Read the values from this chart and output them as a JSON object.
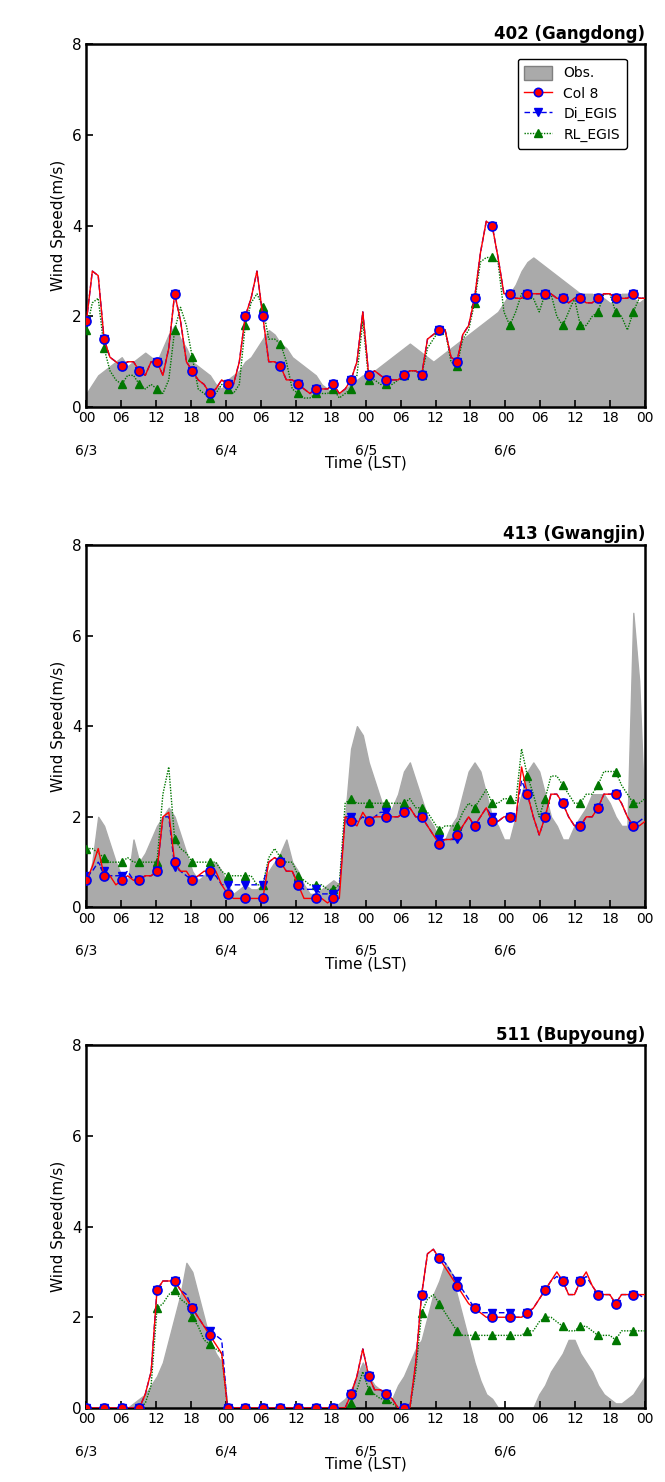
{
  "panels": [
    {
      "title": "402 (Gangdong)",
      "ylim": [
        0,
        8
      ],
      "yticks": [
        0,
        2,
        4,
        6,
        8
      ],
      "obs": [
        0.3,
        0.5,
        0.7,
        0.8,
        0.9,
        1.0,
        1.1,
        0.9,
        1.0,
        1.1,
        1.2,
        1.1,
        1.0,
        1.3,
        1.6,
        1.8,
        1.5,
        1.3,
        1.0,
        0.9,
        0.8,
        0.7,
        0.5,
        0.4,
        0.6,
        0.7,
        0.8,
        1.0,
        1.1,
        1.3,
        1.5,
        1.7,
        1.6,
        1.4,
        1.3,
        1.1,
        1.0,
        0.9,
        0.8,
        0.7,
        0.5,
        0.4,
        0.3,
        0.3,
        0.4,
        0.5,
        0.6,
        0.7,
        0.7,
        0.8,
        0.9,
        1.0,
        1.1,
        1.2,
        1.3,
        1.4,
        1.3,
        1.2,
        1.1,
        1.0,
        1.1,
        1.2,
        1.3,
        1.4,
        1.5,
        1.6,
        1.7,
        1.8,
        1.9,
        2.0,
        2.1,
        2.3,
        2.5,
        2.7,
        3.0,
        3.2,
        3.3,
        3.2,
        3.1,
        3.0,
        2.9,
        2.8,
        2.7,
        2.6,
        2.5,
        2.5,
        2.5,
        2.4,
        2.4,
        2.3,
        2.3,
        2.5,
        2.5,
        2.4,
        2.3,
        2.4
      ],
      "col8": [
        1.9,
        3.0,
        2.9,
        1.5,
        1.1,
        1.0,
        0.9,
        1.0,
        1.0,
        0.8,
        0.7,
        1.0,
        1.0,
        0.7,
        1.3,
        2.5,
        1.9,
        1.0,
        0.8,
        0.6,
        0.5,
        0.3,
        0.4,
        0.6,
        0.5,
        0.5,
        1.0,
        2.0,
        2.4,
        3.0,
        2.0,
        1.0,
        1.0,
        0.9,
        0.6,
        0.6,
        0.5,
        0.4,
        0.3,
        0.4,
        0.4,
        0.4,
        0.5,
        0.3,
        0.4,
        0.6,
        1.0,
        2.1,
        0.7,
        0.8,
        0.7,
        0.6,
        0.6,
        0.6,
        0.7,
        0.8,
        0.8,
        0.7,
        1.5,
        1.6,
        1.7,
        1.7,
        1.1,
        1.0,
        1.6,
        1.8,
        2.4,
        3.4,
        4.1,
        4.0,
        3.3,
        2.5,
        2.5,
        2.4,
        2.4,
        2.5,
        2.5,
        2.5,
        2.5,
        2.5,
        2.4,
        2.4,
        2.3,
        2.4,
        2.4,
        2.3,
        2.3,
        2.4,
        2.5,
        2.5,
        2.4,
        2.4,
        2.4,
        2.5,
        2.4,
        2.4
      ],
      "di_egis": [
        1.9,
        3.0,
        2.9,
        1.5,
        1.1,
        1.0,
        0.9,
        1.0,
        1.0,
        0.8,
        0.7,
        1.0,
        1.0,
        0.7,
        1.3,
        2.5,
        1.9,
        1.0,
        0.8,
        0.6,
        0.5,
        0.3,
        0.4,
        0.6,
        0.5,
        0.5,
        1.0,
        2.0,
        2.4,
        3.0,
        2.0,
        1.0,
        1.0,
        0.9,
        0.6,
        0.6,
        0.5,
        0.4,
        0.3,
        0.4,
        0.4,
        0.4,
        0.5,
        0.3,
        0.4,
        0.6,
        1.0,
        2.1,
        0.7,
        0.8,
        0.7,
        0.6,
        0.6,
        0.6,
        0.7,
        0.8,
        0.8,
        0.7,
        1.5,
        1.6,
        1.7,
        1.7,
        1.1,
        1.0,
        1.6,
        1.8,
        2.4,
        3.4,
        4.1,
        4.0,
        3.3,
        2.5,
        2.5,
        2.4,
        2.4,
        2.5,
        2.5,
        2.5,
        2.5,
        2.5,
        2.4,
        2.4,
        2.3,
        2.4,
        2.4,
        2.3,
        2.3,
        2.4,
        2.5,
        2.5,
        2.4,
        2.4,
        2.4,
        2.5,
        2.4,
        2.4
      ],
      "rl_egis": [
        1.7,
        2.3,
        2.4,
        1.3,
        0.8,
        0.6,
        0.5,
        0.7,
        0.7,
        0.5,
        0.4,
        0.5,
        0.4,
        0.3,
        0.6,
        1.7,
        2.2,
        1.8,
        1.1,
        0.4,
        0.3,
        0.2,
        0.3,
        0.5,
        0.4,
        0.3,
        0.5,
        1.8,
        2.3,
        2.5,
        2.2,
        1.5,
        1.5,
        1.4,
        1.0,
        0.4,
        0.3,
        0.2,
        0.2,
        0.3,
        0.3,
        0.3,
        0.4,
        0.2,
        0.3,
        0.4,
        0.7,
        1.9,
        0.6,
        0.6,
        0.5,
        0.5,
        0.5,
        0.6,
        0.7,
        0.8,
        0.8,
        0.7,
        1.3,
        1.5,
        1.7,
        1.7,
        1.0,
        0.9,
        1.5,
        1.7,
        2.3,
        3.2,
        3.3,
        3.3,
        3.2,
        2.1,
        1.8,
        2.1,
        2.5,
        2.5,
        2.4,
        2.1,
        2.5,
        2.5,
        2.0,
        1.8,
        2.1,
        2.4,
        1.8,
        1.8,
        2.0,
        2.1,
        2.5,
        2.5,
        2.1,
        2.0,
        1.7,
        2.1,
        2.4,
        2.4
      ]
    },
    {
      "title": "413 (Gwangjin)",
      "ylim": [
        0,
        8
      ],
      "yticks": [
        0,
        2,
        4,
        6,
        8
      ],
      "obs": [
        0.5,
        1.0,
        2.0,
        1.8,
        1.4,
        1.0,
        0.7,
        0.5,
        1.5,
        1.0,
        1.2,
        1.5,
        1.8,
        2.0,
        2.2,
        2.0,
        1.6,
        1.2,
        0.8,
        0.6,
        0.7,
        0.9,
        1.0,
        0.8,
        0.5,
        0.3,
        0.4,
        0.5,
        0.4,
        0.4,
        0.5,
        0.8,
        1.0,
        1.2,
        1.5,
        1.0,
        0.8,
        0.5,
        0.3,
        0.3,
        0.4,
        0.5,
        0.6,
        0.5,
        2.0,
        3.5,
        4.0,
        3.8,
        3.2,
        2.8,
        2.4,
        2.0,
        2.2,
        2.5,
        3.0,
        3.2,
        2.8,
        2.4,
        2.0,
        1.8,
        1.5,
        1.5,
        1.8,
        2.0,
        2.5,
        3.0,
        3.2,
        3.0,
        2.5,
        2.0,
        1.8,
        1.5,
        1.5,
        2.0,
        2.5,
        3.0,
        3.2,
        3.0,
        2.5,
        2.0,
        1.8,
        1.5,
        1.5,
        1.8,
        2.0,
        2.2,
        2.5,
        2.5,
        2.5,
        2.3,
        2.0,
        1.8,
        1.8,
        6.5,
        5.0,
        1.8
      ],
      "col8": [
        0.6,
        0.9,
        1.3,
        0.7,
        0.7,
        0.5,
        0.6,
        0.7,
        0.6,
        0.6,
        0.7,
        0.7,
        0.8,
        2.0,
        2.1,
        1.0,
        0.8,
        0.8,
        0.6,
        0.7,
        0.8,
        0.8,
        0.8,
        0.5,
        0.3,
        0.2,
        0.2,
        0.2,
        0.2,
        0.2,
        0.2,
        1.0,
        1.1,
        1.0,
        0.8,
        0.8,
        0.5,
        0.2,
        0.2,
        0.2,
        0.2,
        0.1,
        0.2,
        0.2,
        2.0,
        1.9,
        1.8,
        2.1,
        1.9,
        2.0,
        2.0,
        2.0,
        2.0,
        2.0,
        2.1,
        2.2,
        2.0,
        2.0,
        1.8,
        1.6,
        1.4,
        1.5,
        1.5,
        1.6,
        1.8,
        2.0,
        1.8,
        2.0,
        2.2,
        1.9,
        1.9,
        2.0,
        2.0,
        1.9,
        3.1,
        2.5,
        2.0,
        1.6,
        2.0,
        2.5,
        2.5,
        2.3,
        2.0,
        1.8,
        1.8,
        2.0,
        2.0,
        2.2,
        2.5,
        2.5,
        2.5,
        2.3,
        2.0,
        1.8,
        1.8,
        1.9
      ],
      "di_egis": [
        0.7,
        0.8,
        1.0,
        0.8,
        0.7,
        0.7,
        0.7,
        0.8,
        0.6,
        0.6,
        0.7,
        0.7,
        0.8,
        2.0,
        2.0,
        0.9,
        0.8,
        0.7,
        0.6,
        0.7,
        0.7,
        0.7,
        0.7,
        0.5,
        0.5,
        0.5,
        0.5,
        0.5,
        0.5,
        0.5,
        0.5,
        1.0,
        1.1,
        1.0,
        0.8,
        0.8,
        0.5,
        0.4,
        0.4,
        0.4,
        0.3,
        0.3,
        0.3,
        0.4,
        2.0,
        2.0,
        1.9,
        2.0,
        1.9,
        2.0,
        2.1,
        2.1,
        2.0,
        2.0,
        2.1,
        2.2,
        2.0,
        2.0,
        1.8,
        1.6,
        1.5,
        1.5,
        1.5,
        1.5,
        1.8,
        2.0,
        1.8,
        2.0,
        2.2,
        2.0,
        1.9,
        2.0,
        2.0,
        2.0,
        2.8,
        2.5,
        2.0,
        1.6,
        2.0,
        2.5,
        2.5,
        2.3,
        2.0,
        1.8,
        1.8,
        2.0,
        2.0,
        2.2,
        2.5,
        2.5,
        2.5,
        2.3,
        2.0,
        1.8,
        1.9,
        2.0
      ],
      "rl_egis": [
        1.3,
        1.3,
        1.2,
        1.1,
        1.0,
        1.0,
        1.0,
        1.1,
        1.0,
        1.0,
        1.0,
        1.0,
        1.0,
        2.5,
        3.1,
        1.5,
        1.3,
        1.2,
        1.0,
        1.0,
        1.0,
        1.0,
        1.0,
        0.8,
        0.7,
        0.7,
        0.7,
        0.7,
        0.7,
        0.5,
        0.5,
        1.1,
        1.3,
        1.1,
        1.0,
        1.0,
        0.7,
        0.6,
        0.5,
        0.5,
        0.5,
        0.4,
        0.4,
        0.5,
        2.3,
        2.4,
        2.3,
        2.3,
        2.3,
        2.3,
        2.3,
        2.3,
        2.3,
        2.3,
        2.3,
        2.4,
        2.2,
        2.2,
        2.1,
        1.9,
        1.7,
        1.8,
        1.8,
        1.8,
        2.1,
        2.3,
        2.2,
        2.4,
        2.6,
        2.3,
        2.3,
        2.4,
        2.4,
        2.3,
        3.5,
        2.9,
        2.5,
        2.0,
        2.4,
        2.9,
        2.9,
        2.7,
        2.5,
        2.3,
        2.3,
        2.5,
        2.5,
        2.7,
        3.0,
        3.0,
        3.0,
        2.7,
        2.5,
        2.3,
        2.3,
        2.4
      ]
    },
    {
      "title": "511 (Bupyoung)",
      "ylim": [
        0,
        8
      ],
      "yticks": [
        0,
        2,
        4,
        6,
        8
      ],
      "obs": [
        0.0,
        0.0,
        0.0,
        0.0,
        0.0,
        0.0,
        0.0,
        0.0,
        0.1,
        0.2,
        0.3,
        0.5,
        0.7,
        1.0,
        1.5,
        2.0,
        2.5,
        3.2,
        3.0,
        2.5,
        2.0,
        1.5,
        1.2,
        1.0,
        0.0,
        0.0,
        0.0,
        0.0,
        0.0,
        0.0,
        0.0,
        0.0,
        0.0,
        0.0,
        0.0,
        0.0,
        0.0,
        0.0,
        0.0,
        0.0,
        0.0,
        0.0,
        0.0,
        0.1,
        0.2,
        0.4,
        0.7,
        1.0,
        0.7,
        0.5,
        0.4,
        0.3,
        0.2,
        0.5,
        0.7,
        1.0,
        1.3,
        1.5,
        2.0,
        2.5,
        2.8,
        3.2,
        3.0,
        2.5,
        2.0,
        1.5,
        1.0,
        0.6,
        0.3,
        0.2,
        0.0,
        0.0,
        0.0,
        0.0,
        0.0,
        0.0,
        0.0,
        0.3,
        0.5,
        0.8,
        1.0,
        1.2,
        1.5,
        1.5,
        1.2,
        1.0,
        0.8,
        0.5,
        0.3,
        0.2,
        0.1,
        0.1,
        0.2,
        0.3,
        0.5,
        0.7
      ],
      "col8": [
        0.0,
        0.0,
        0.0,
        0.0,
        0.0,
        0.0,
        0.0,
        0.0,
        0.0,
        0.0,
        0.3,
        0.8,
        2.6,
        2.8,
        2.8,
        2.8,
        2.6,
        2.4,
        2.2,
        2.0,
        1.8,
        1.6,
        1.4,
        1.2,
        0.0,
        0.0,
        0.0,
        0.0,
        0.0,
        0.0,
        0.0,
        0.0,
        0.0,
        0.0,
        0.0,
        0.0,
        0.0,
        0.0,
        0.0,
        0.0,
        0.0,
        0.0,
        0.0,
        0.0,
        0.0,
        0.3,
        0.7,
        1.3,
        0.7,
        0.4,
        0.4,
        0.3,
        0.2,
        0.0,
        0.0,
        0.0,
        1.0,
        2.5,
        3.4,
        3.5,
        3.3,
        3.1,
        2.9,
        2.7,
        2.5,
        2.3,
        2.2,
        2.1,
        2.0,
        2.0,
        2.0,
        2.0,
        2.0,
        2.0,
        2.0,
        2.1,
        2.2,
        2.4,
        2.6,
        2.8,
        3.0,
        2.8,
        2.5,
        2.5,
        2.8,
        3.0,
        2.7,
        2.5,
        2.5,
        2.5,
        2.3,
        2.5,
        2.5,
        2.5,
        2.5,
        2.5
      ],
      "di_egis": [
        0.0,
        0.0,
        0.0,
        0.0,
        0.0,
        0.0,
        0.0,
        0.0,
        0.0,
        0.0,
        0.3,
        0.8,
        2.6,
        2.8,
        2.8,
        2.8,
        2.6,
        2.5,
        2.2,
        2.0,
        1.8,
        1.7,
        1.6,
        1.5,
        0.0,
        0.0,
        0.0,
        0.0,
        0.0,
        0.0,
        0.0,
        0.0,
        0.0,
        0.0,
        0.0,
        0.0,
        0.0,
        0.0,
        0.0,
        0.0,
        0.0,
        0.0,
        0.0,
        0.0,
        0.0,
        0.3,
        0.7,
        1.3,
        0.7,
        0.4,
        0.4,
        0.3,
        0.2,
        0.0,
        0.0,
        0.0,
        1.0,
        2.5,
        3.4,
        3.5,
        3.3,
        3.2,
        3.0,
        2.8,
        2.6,
        2.4,
        2.2,
        2.1,
        2.1,
        2.1,
        2.1,
        2.1,
        2.1,
        2.0,
        2.0,
        2.1,
        2.2,
        2.4,
        2.6,
        2.8,
        2.9,
        2.8,
        2.5,
        2.5,
        2.8,
        2.9,
        2.7,
        2.5,
        2.5,
        2.5,
        2.3,
        2.5,
        2.5,
        2.5,
        2.5,
        2.4
      ],
      "rl_egis": [
        0.0,
        0.0,
        0.0,
        0.0,
        0.0,
        0.0,
        0.0,
        0.0,
        0.0,
        0.0,
        0.1,
        0.5,
        2.2,
        2.3,
        2.5,
        2.6,
        2.4,
        2.3,
        2.0,
        1.8,
        1.5,
        1.4,
        1.3,
        1.2,
        0.0,
        0.0,
        0.0,
        0.0,
        0.0,
        0.0,
        0.0,
        0.0,
        0.0,
        0.0,
        0.0,
        0.0,
        0.0,
        0.0,
        0.0,
        0.0,
        0.0,
        0.0,
        0.0,
        0.0,
        0.0,
        0.1,
        0.4,
        0.8,
        0.4,
        0.3,
        0.2,
        0.2,
        0.1,
        0.0,
        0.0,
        0.0,
        0.8,
        2.1,
        2.4,
        2.5,
        2.3,
        2.1,
        1.9,
        1.7,
        1.6,
        1.6,
        1.6,
        1.6,
        1.6,
        1.6,
        1.6,
        1.6,
        1.6,
        1.6,
        1.6,
        1.7,
        1.7,
        1.9,
        2.0,
        2.0,
        1.9,
        1.8,
        1.7,
        1.7,
        1.8,
        1.8,
        1.7,
        1.6,
        1.6,
        1.6,
        1.5,
        1.7,
        1.7,
        1.7,
        1.7,
        1.7
      ]
    }
  ],
  "n_hours": 96,
  "hour_ticks": [
    0,
    6,
    12,
    18,
    24,
    30,
    36,
    42,
    48,
    54,
    60,
    66,
    72,
    78,
    84,
    90,
    96
  ],
  "hour_tick_labels": [
    "00",
    "06",
    "12",
    "18",
    "00",
    "06",
    "12",
    "18",
    "00",
    "06",
    "12",
    "18",
    "00",
    "06",
    "12",
    "18",
    "00"
  ],
  "day_ticks": [
    0,
    24,
    48,
    72,
    96
  ],
  "day_labels": [
    "6/3",
    "6/4",
    "6/5",
    "6/6",
    ""
  ],
  "xlabel": "Time (LST)",
  "ylabel": "Wind Speed(m/s)",
  "obs_color": "#aaaaaa",
  "col8_color": "#ff0000",
  "di_egis_color": "#0000ee",
  "rl_egis_color": "#007700",
  "legend_labels": [
    "Obs.",
    "Col 8",
    "Di_EGIS",
    "RL_EGIS"
  ]
}
